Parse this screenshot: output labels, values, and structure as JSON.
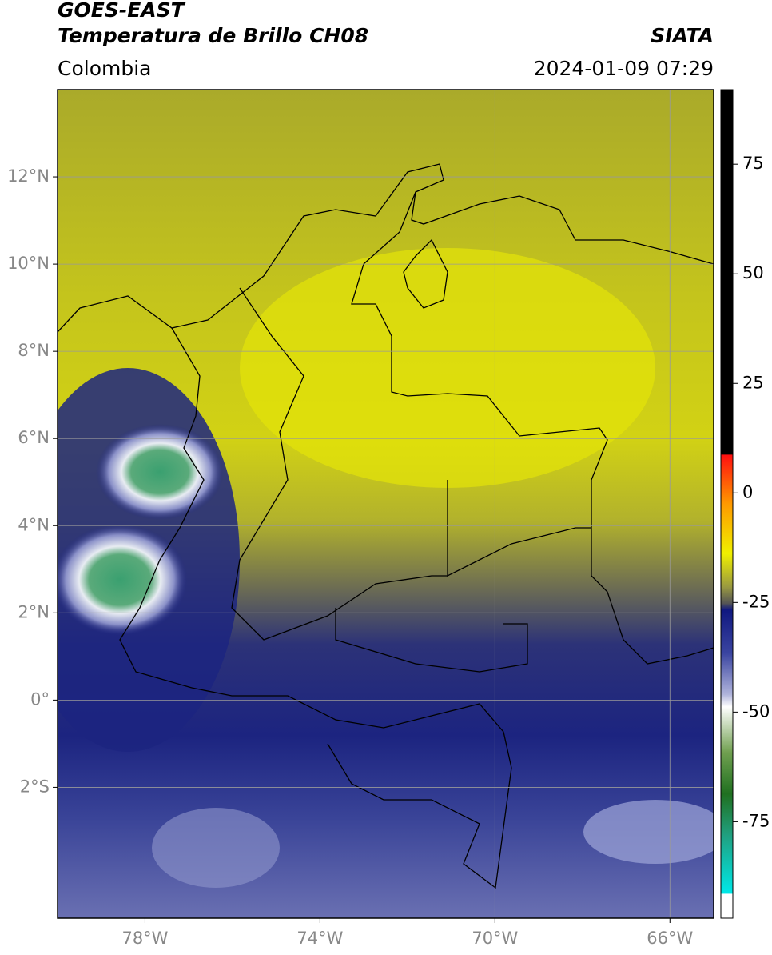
{
  "header": {
    "title": "GOES-EAST",
    "subtitle": "Temperatura de Brillo CH08",
    "source": "SIATA",
    "region": "Colombia",
    "timestamp": "2024-01-09 07:29"
  },
  "map": {
    "xlim": [
      -80,
      -65
    ],
    "ylim": [
      -5,
      14
    ],
    "xticks": [
      {
        "value": -78,
        "label": "78°W"
      },
      {
        "value": -74,
        "label": "74°W"
      },
      {
        "value": -70,
        "label": "70°W"
      },
      {
        "value": -66,
        "label": "66°W"
      }
    ],
    "yticks": [
      {
        "value": 12,
        "label": "12°N"
      },
      {
        "value": 10,
        "label": "10°N"
      },
      {
        "value": 8,
        "label": "8°N"
      },
      {
        "value": 6,
        "label": "6°N"
      },
      {
        "value": 4,
        "label": "4°N"
      },
      {
        "value": 2,
        "label": "2°N"
      },
      {
        "value": 0,
        "label": "0°"
      },
      {
        "value": -2,
        "label": "2°S"
      }
    ],
    "grid": true
  },
  "colorbar": {
    "lim": [
      -97,
      92
    ],
    "ticks": [
      75,
      50,
      25,
      0,
      -25,
      -50,
      -75
    ]
  }
}
